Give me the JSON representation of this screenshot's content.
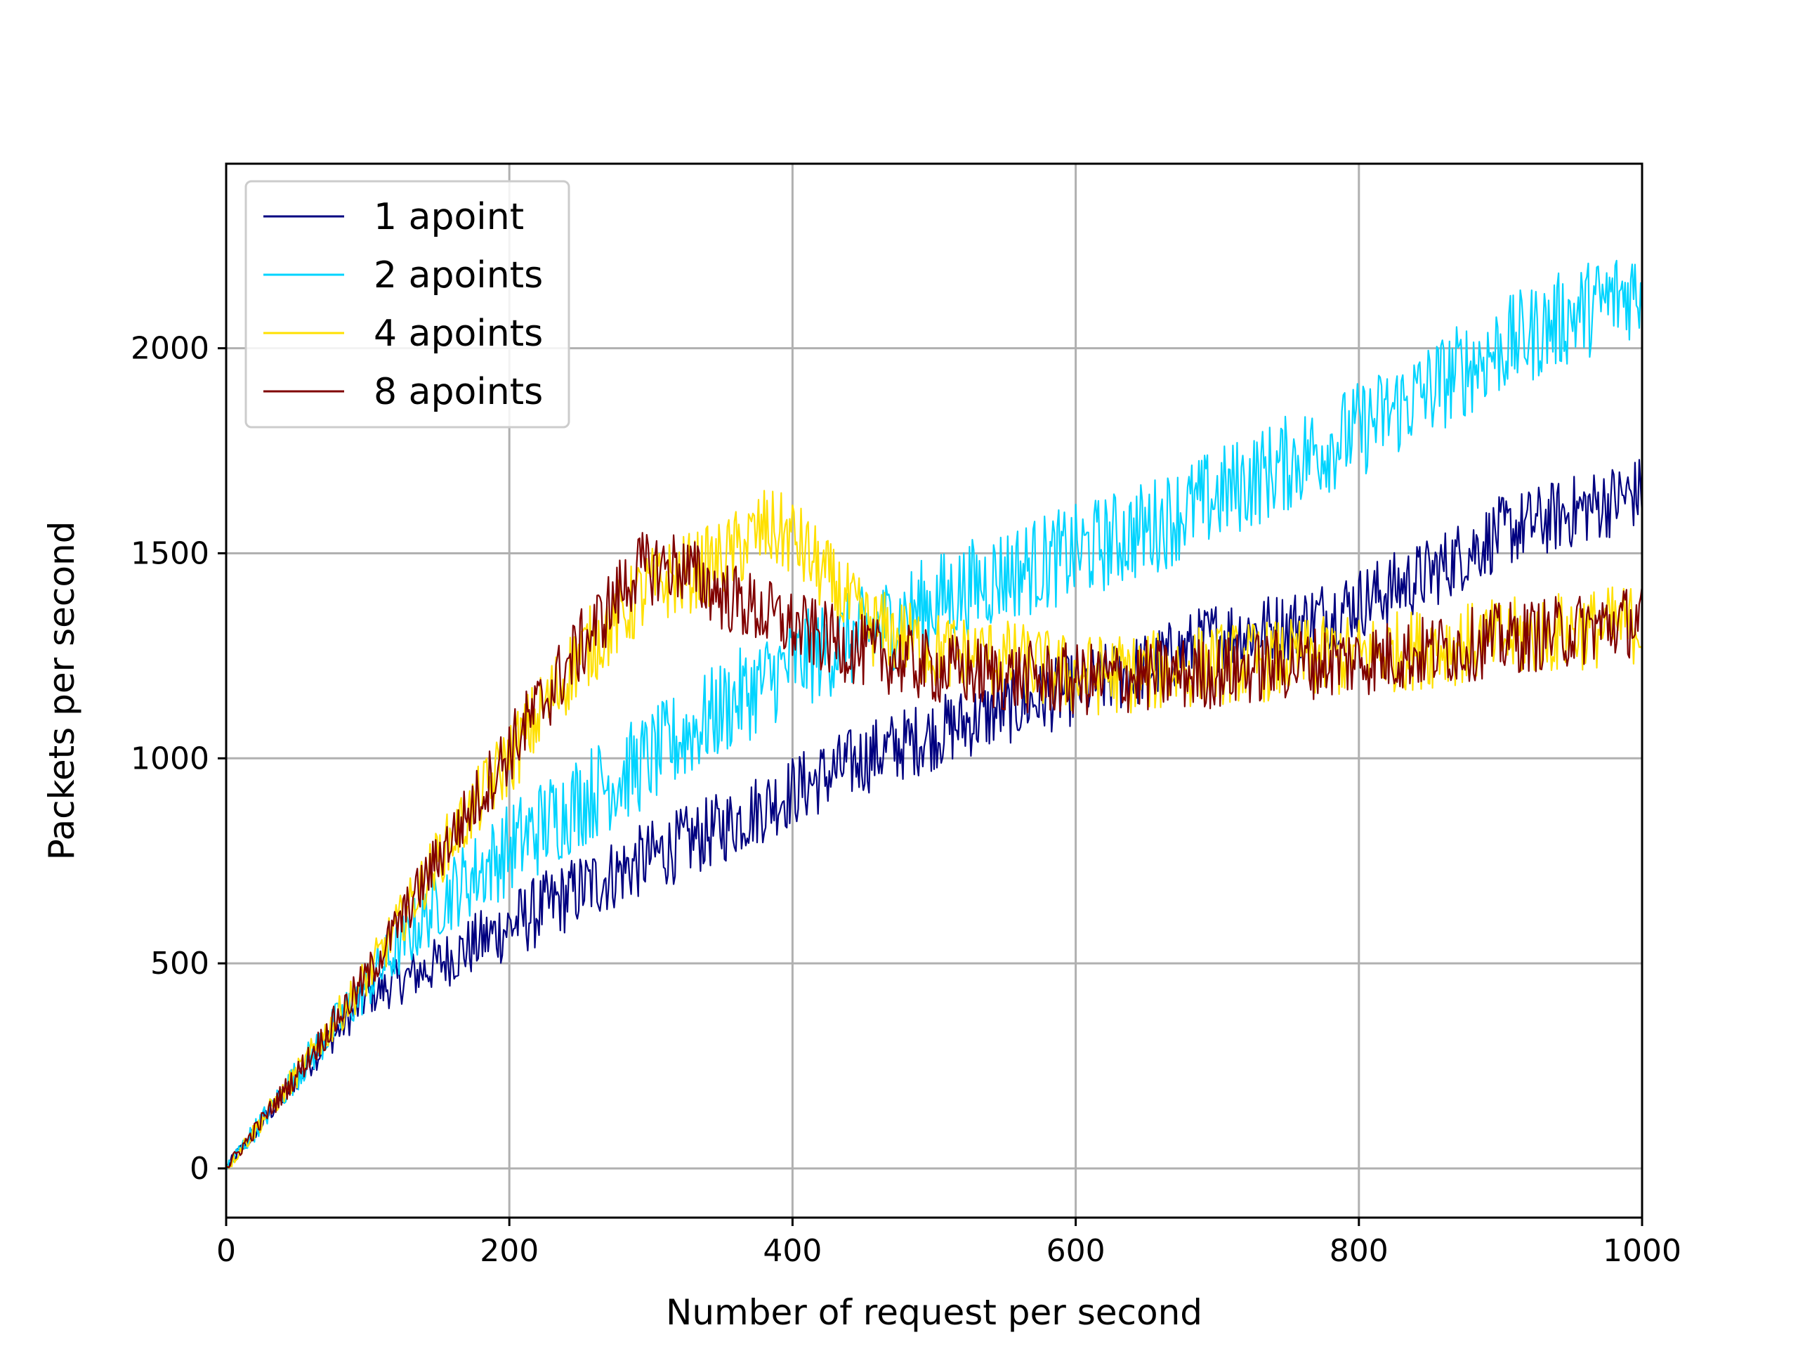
{
  "chart_data": {
    "type": "line",
    "title": "",
    "xlabel": "Number of request per second",
    "ylabel": "Packets per second",
    "xlim": [
      0,
      1000
    ],
    "ylim": [
      -120,
      2450
    ],
    "xticks": [
      0,
      200,
      400,
      600,
      800,
      1000
    ],
    "yticks": [
      0,
      500,
      1000,
      1500,
      2000
    ],
    "grid": true,
    "legend_position": "top-left",
    "x_step": 1,
    "series": [
      {
        "name": "1 apoint",
        "color": "#000080",
        "anchors_x": [
          0,
          50,
          100,
          150,
          200,
          250,
          300,
          350,
          400,
          450,
          500,
          550,
          600,
          650,
          700,
          750,
          800,
          850,
          900,
          950,
          1000
        ],
        "anchors_y": [
          0,
          220,
          420,
          500,
          590,
          680,
          760,
          830,
          920,
          1000,
          1060,
          1120,
          1170,
          1220,
          1300,
          1320,
          1380,
          1450,
          1550,
          1600,
          1650
        ],
        "noise": 90
      },
      {
        "name": "2 apoints",
        "color": "#00d4ff",
        "anchors_x": [
          0,
          50,
          100,
          150,
          200,
          250,
          300,
          350,
          400,
          450,
          500,
          550,
          600,
          650,
          700,
          750,
          800,
          850,
          900,
          950,
          1000
        ],
        "anchors_y": [
          0,
          230,
          450,
          650,
          780,
          900,
          1000,
          1120,
          1230,
          1300,
          1380,
          1450,
          1500,
          1560,
          1640,
          1720,
          1800,
          1900,
          2000,
          2080,
          2150
        ],
        "noise": 120
      },
      {
        "name": "4 apoints",
        "color": "#ffe000",
        "anchors_x": [
          0,
          50,
          100,
          150,
          200,
          250,
          300,
          350,
          380,
          400,
          450,
          500,
          550,
          600,
          650,
          700,
          750,
          800,
          850,
          900,
          950,
          1000
        ],
        "anchors_y": [
          0,
          230,
          470,
          760,
          1000,
          1250,
          1420,
          1480,
          1560,
          1540,
          1330,
          1260,
          1240,
          1200,
          1210,
          1230,
          1240,
          1250,
          1270,
          1290,
          1310,
          1330
        ],
        "noise": 100
      },
      {
        "name": "8 apoints",
        "color": "#800000",
        "anchors_x": [
          0,
          50,
          100,
          150,
          200,
          250,
          290,
          320,
          350,
          400,
          450,
          500,
          550,
          600,
          650,
          700,
          750,
          800,
          850,
          900,
          950,
          1000
        ],
        "anchors_y": [
          0,
          230,
          470,
          760,
          1020,
          1270,
          1460,
          1470,
          1400,
          1320,
          1260,
          1220,
          1200,
          1190,
          1200,
          1210,
          1230,
          1240,
          1260,
          1290,
          1310,
          1340
        ],
        "noise": 90
      }
    ]
  }
}
